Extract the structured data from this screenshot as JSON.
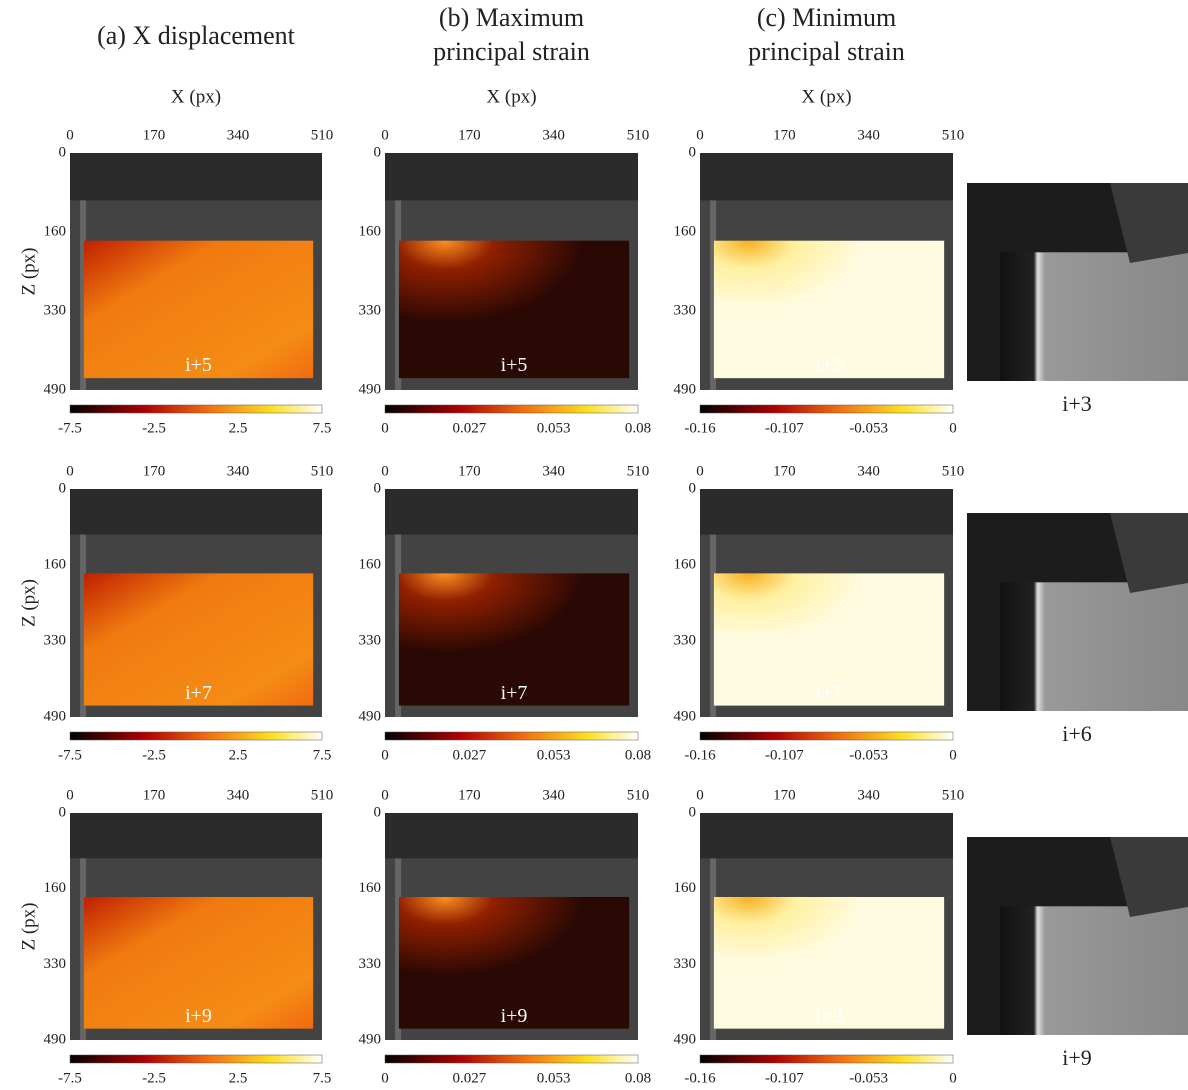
{
  "columns": [
    {
      "title": [
        "(a) X displacement"
      ],
      "x_label": "X (px)",
      "colorbar_ticks": [
        "-7.5",
        "-2.5",
        "2.5",
        "7.5"
      ]
    },
    {
      "title": [
        "(b) Maximum",
        "principal strain"
      ],
      "x_label": "X (px)",
      "colorbar_ticks": [
        "0",
        "0.027",
        "0.053",
        "0.08"
      ]
    },
    {
      "title": [
        "(c) Minimum",
        "principal strain"
      ],
      "x_label": "X (px)",
      "colorbar_ticks": [
        "-0.16",
        "-0.107",
        "-0.053",
        "0"
      ]
    }
  ],
  "x_ticks": [
    "0",
    "170",
    "340",
    "510"
  ],
  "z_ticks": [
    "0",
    "160",
    "330",
    "490"
  ],
  "z_label": "Z (px)",
  "rows": [
    {
      "frames": [
        "i+5",
        "i+5",
        "i+5"
      ],
      "photo": "i+3"
    },
    {
      "frames": [
        "i+7",
        "i+7",
        "i+7"
      ],
      "photo": "i+6"
    },
    {
      "frames": [
        "i+9",
        "i+9",
        "i+9"
      ],
      "photo": "i+9"
    }
  ]
}
